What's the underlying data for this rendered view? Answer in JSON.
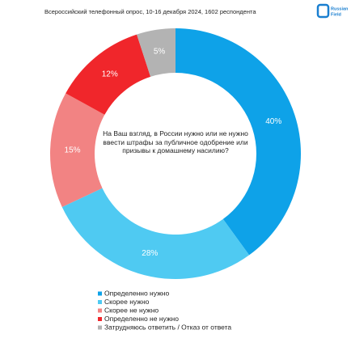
{
  "chart_data": {
    "type": "donut",
    "title": "Всероссийский телефонный опрос, 10-16 декабря 2024, 1602 респондента",
    "brand": [
      "Russian",
      "Field"
    ],
    "center_text": "На Ваш взгляд, в России нужно или не нужно ввести штрафы за публичное одобрение или призывы к домашнему насилию?",
    "categories": [
      "Определенно нужно",
      "Скорее нужно",
      "Скорее не нужно",
      "Определенно не нужно",
      "Затрудняюсь ответить / Отказ от ответа"
    ],
    "values": [
      40,
      28,
      15,
      12,
      5
    ],
    "value_labels": [
      "40%",
      "28%",
      "15%",
      "12%",
      "5%"
    ],
    "colors": [
      "#0ea2e8",
      "#4fcaf2",
      "#f28383",
      "#f0262b",
      "#b3b3b3"
    ],
    "legend": "bottom"
  }
}
